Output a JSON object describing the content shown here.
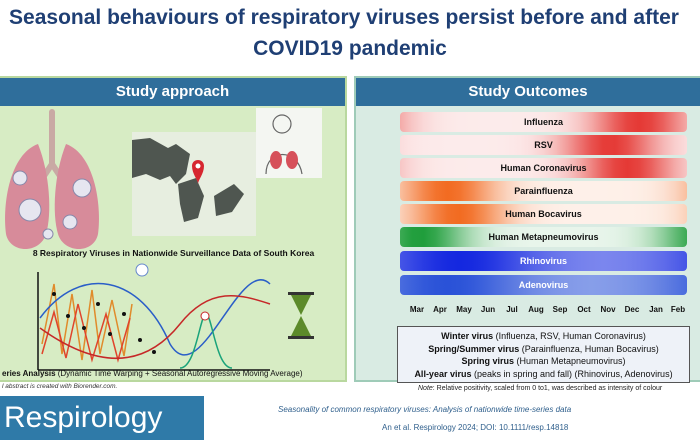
{
  "title": {
    "line1": "Seasonal behaviours of respiratory viruses persist before and after",
    "line2": "COVID19 pandemic"
  },
  "left_panel": {
    "heading": "Study approach",
    "map_caption": "8 Respiratory Viruses in Nationwide Surveillance Data of South Korea",
    "analysis_caption_bold": "eries Analysis",
    "analysis_caption_rest": " (Dynamic Time Warping + Seasonal Autoregressive Moving Average)",
    "credit": "l abstract is created with Biorender.com."
  },
  "right_panel": {
    "heading": "Study Outcomes",
    "viruses": [
      {
        "label": "Influenza",
        "peak_month": 10.0,
        "color": "#e53935"
      },
      {
        "label": "RSV",
        "peak_month": 8.8,
        "color": "#e53935"
      },
      {
        "label": "Human Coronavirus",
        "peak_month": 9.5,
        "color": "#e53935"
      },
      {
        "label": "Parainfluenza",
        "peak_month": 2.0,
        "color": "#f26b21"
      },
      {
        "label": "Human Bocavirus",
        "peak_month": 2.4,
        "color": "#f26b21"
      },
      {
        "label": "Human Metapneumovirus",
        "peak_month": 0.8,
        "color": "#1e9d3a"
      },
      {
        "label": "Rhinovirus",
        "peak_month": 2.5,
        "color": "#1428e0"
      },
      {
        "label": "Adenovirus",
        "peak_month": 2.0,
        "color": "#2a52d8"
      }
    ],
    "months": [
      "Mar",
      "Apr",
      "May",
      "Jun",
      "Jul",
      "Aug",
      "Sep",
      "Oct",
      "Nov",
      "Dec",
      "Jan",
      "Feb"
    ],
    "summary": [
      {
        "bold": "Winter virus",
        "rest": " (Influenza, RSV, Human Coronavirus)"
      },
      {
        "bold": "Spring/Summer virus",
        "rest": " (Parainfluenza, Human Bocavirus)"
      },
      {
        "bold": "Spring virus",
        "rest": " (Human Metapneumovirus)"
      },
      {
        "bold": "All-year virus",
        "rest": " (peaks in spring and fall) (Rhinovirus, Adenovirus)"
      }
    ],
    "note_label": "Note",
    "note_text": ": Relative positivity, scaled from 0 to1, was described as intensity of colour"
  },
  "footer": {
    "brand": "Respirology",
    "citation_title": "Seasonality of common respiratory viruses: Analysis of nationwide time-series data",
    "citation_ref": "An et al. Respirology 2024; DOI: 10.1111/resp.14818"
  }
}
